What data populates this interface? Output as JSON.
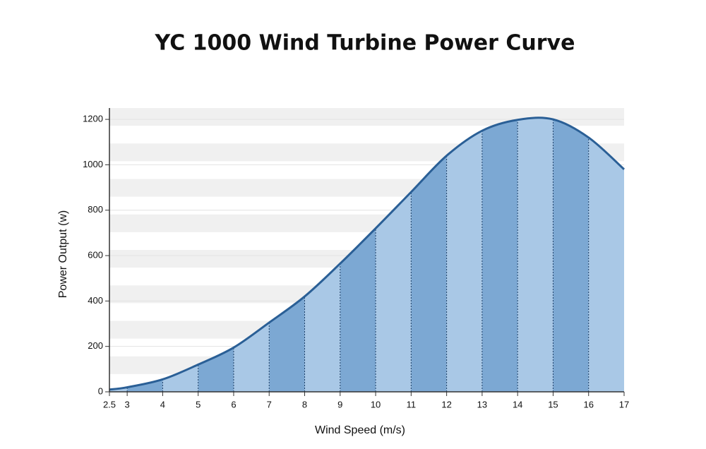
{
  "chart_data": {
    "type": "area",
    "title": "YC 1000 Wind Turbine Power Curve",
    "x_label": "Wind Speed (m/s)",
    "y_label": "Power Output (w)",
    "x": [
      2.5,
      3,
      4,
      5,
      6,
      7,
      8,
      9,
      10,
      11,
      12,
      13,
      14,
      15,
      16,
      17
    ],
    "values": [
      10,
      20,
      55,
      120,
      195,
      305,
      420,
      565,
      720,
      880,
      1040,
      1150,
      1198,
      1200,
      1120,
      980
    ],
    "color": "#2a5f96",
    "band_colors": [
      "#a9c8e6",
      "#7ca8d3"
    ],
    "xlim": [
      2.5,
      17
    ],
    "xticks": [
      2.5,
      3,
      4,
      5,
      6,
      7,
      8,
      9,
      10,
      11,
      12,
      13,
      14,
      15,
      16,
      17
    ],
    "ylim": [
      0,
      1250
    ],
    "yticks": [
      0,
      200,
      400,
      600,
      800,
      1000,
      1200
    ],
    "grid": true
  }
}
